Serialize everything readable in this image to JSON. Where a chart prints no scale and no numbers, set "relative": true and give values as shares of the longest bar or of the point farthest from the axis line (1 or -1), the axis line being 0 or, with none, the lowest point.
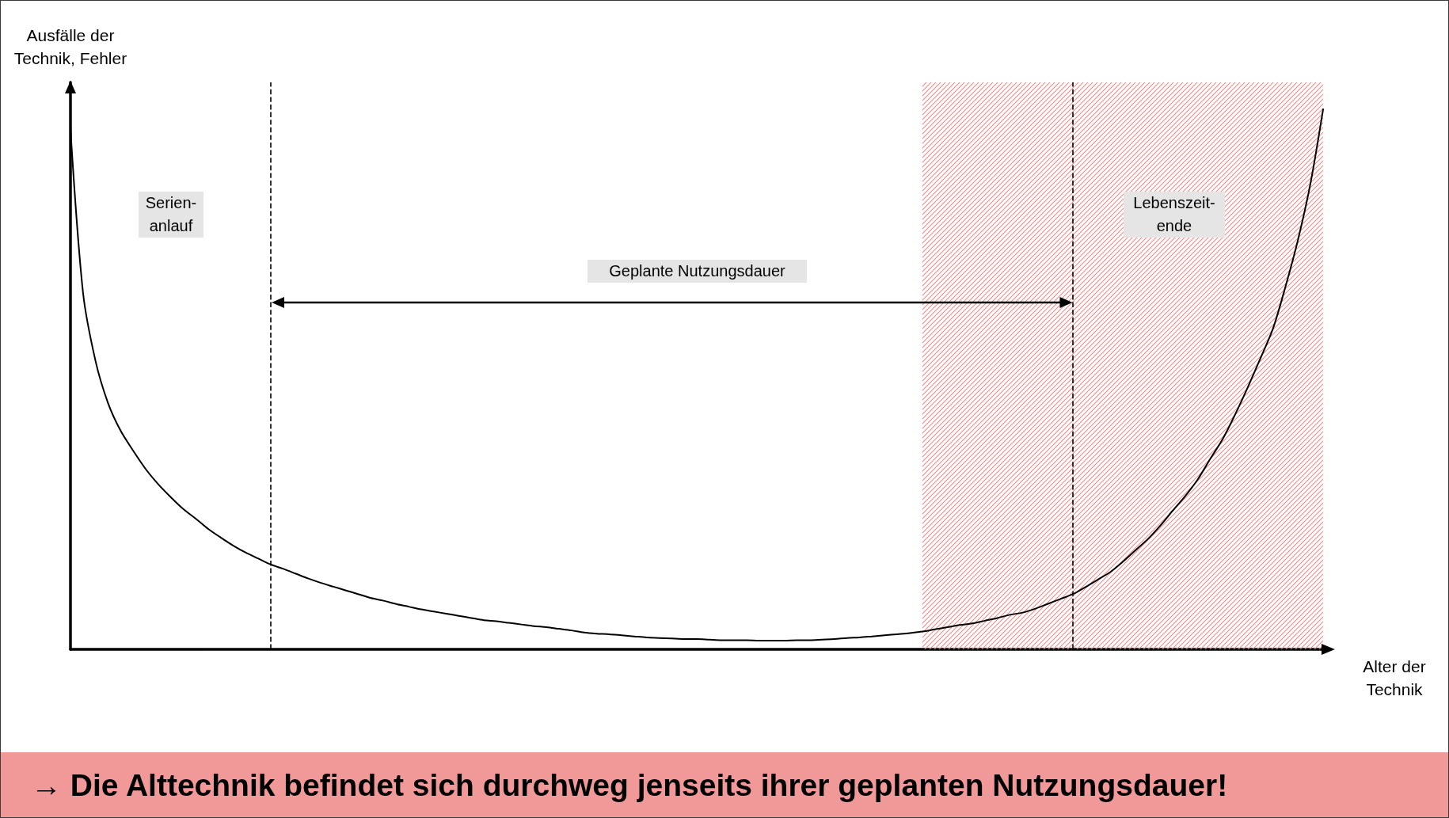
{
  "chart_data": {
    "type": "line",
    "relative": true,
    "ylabel": "Ausfälle der Technik, Fehler",
    "xlabel": "Alter der Technik",
    "categories": [
      null,
      null,
      null,
      null,
      null,
      null,
      null,
      null,
      null,
      null,
      null,
      null,
      null,
      null,
      null,
      null,
      null,
      null,
      null,
      null,
      null,
      null,
      null,
      null,
      null,
      null,
      null,
      null,
      null,
      null,
      null,
      null,
      null,
      null,
      null,
      null,
      null,
      null,
      null,
      null,
      null,
      null,
      null,
      null,
      null,
      null,
      null,
      null,
      null,
      null,
      null,
      null,
      null,
      null,
      null,
      null,
      null,
      null,
      null,
      null,
      null,
      null,
      null,
      null,
      null,
      null,
      null,
      null,
      null,
      null,
      null,
      null,
      null,
      null,
      null,
      null,
      null,
      null,
      null,
      null,
      null,
      null,
      null,
      null,
      null,
      null,
      null,
      null,
      null,
      null,
      null,
      null,
      null,
      null,
      null,
      null,
      null,
      null,
      null,
      null,
      null
    ],
    "values": [
      0.963,
      0.661,
      0.534,
      0.456,
      0.405,
      0.368,
      0.334,
      0.306,
      0.282,
      0.26,
      0.242,
      0.223,
      0.207,
      0.192,
      0.179,
      0.168,
      0.157,
      0.149,
      0.14,
      0.131,
      0.123,
      0.116,
      0.109,
      0.102,
      0.095,
      0.09,
      0.084,
      0.079,
      0.074,
      0.07,
      0.066,
      0.062,
      0.058,
      0.054,
      0.052,
      0.049,
      0.046,
      0.043,
      0.041,
      0.038,
      0.035,
      0.031,
      0.029,
      0.028,
      0.026,
      0.024,
      0.022,
      0.021,
      0.02,
      0.019,
      0.019,
      0.018,
      0.017,
      0.017,
      0.017,
      0.016,
      0.016,
      0.016,
      0.017,
      0.017,
      0.018,
      0.019,
      0.021,
      0.022,
      0.024,
      0.026,
      0.028,
      0.03,
      0.033,
      0.037,
      0.041,
      0.045,
      0.048,
      0.053,
      0.058,
      0.064,
      0.068,
      0.075,
      0.084,
      0.093,
      0.102,
      0.115,
      0.129,
      0.143,
      0.162,
      0.183,
      0.204,
      0.229,
      0.257,
      0.284,
      0.315,
      0.353,
      0.39,
      0.436,
      0.486,
      0.539,
      0.594,
      0.672,
      0.759,
      0.864,
      1
    ],
    "color": "#000000",
    "marker": "none",
    "line_style": "solid",
    "annotations": [
      "Serien-anlauf",
      "Geplante Nutzungsdauer",
      "Lebenszeit-ende",
      "→ Die Alttechnik befindet sich durchweg jenseits ihrer geplanten Nutzungsdauer!"
    ]
  }
}
